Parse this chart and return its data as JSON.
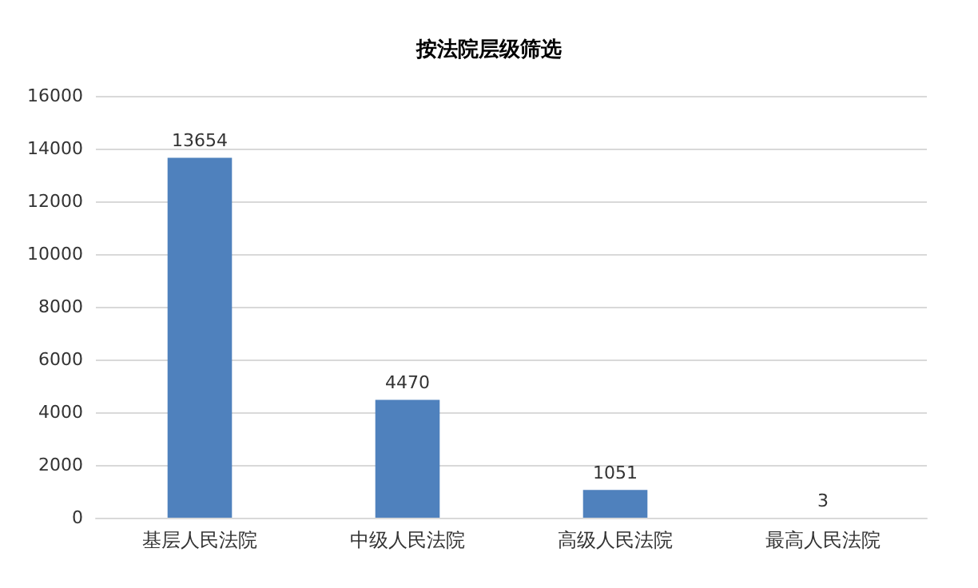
{
  "chart_data": {
    "type": "bar",
    "title": "按法院层级筛选",
    "categories": [
      "基层人民法院",
      "中级人民法院",
      "高级人民法院",
      "最高人民法院"
    ],
    "values": [
      13654,
      4470,
      1051,
      3
    ],
    "color": "#4f81bd",
    "ylim": [
      0,
      16000
    ],
    "yticks": [
      0,
      2000,
      4000,
      6000,
      8000,
      10000,
      12000,
      14000,
      16000
    ],
    "grid": "y",
    "data_labels": true
  }
}
